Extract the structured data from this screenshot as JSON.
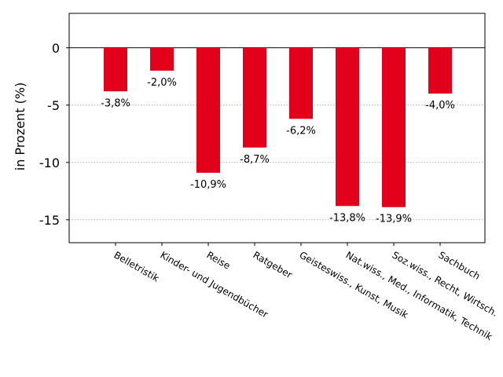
{
  "chart_data": {
    "type": "bar",
    "title": "",
    "xlabel": "",
    "ylabel": "in Prozent (%)",
    "ylim": [
      -17,
      3
    ],
    "yticks": [
      0,
      -5,
      -10,
      -15
    ],
    "ytick_labels": [
      "0",
      "-5",
      "-10",
      "-15"
    ],
    "grid": "horizontal dotted",
    "categories": [
      "Belletristik",
      "Kinder- und Jugendbücher",
      "Reise",
      "Ratgeber",
      "Geisteswiss., Kunst, Musik",
      "Nat.wiss., Med., Informatik, Technik",
      "Soz.wiss., Recht, Wirtsch.",
      "Sachbuch"
    ],
    "values": [
      -3.8,
      -2.0,
      -10.9,
      -8.7,
      -6.2,
      -13.8,
      -13.9,
      -4.0
    ],
    "data_labels": [
      "-3,8%",
      "-2,0%",
      "-10,9%",
      "-8,7%",
      "-6,2%",
      "-13,8%",
      "-13,9%",
      "-4,0%"
    ],
    "bar_color": "#e2001a"
  }
}
